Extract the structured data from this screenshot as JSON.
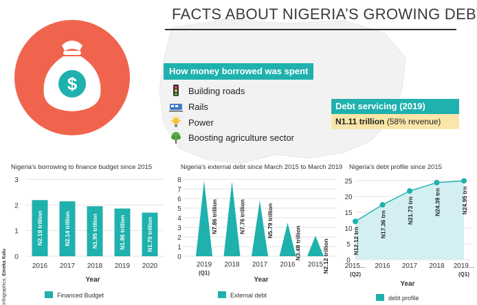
{
  "header": {
    "title": "FACTS ABOUT NIGERIA’S GROWING DEBTS"
  },
  "spending": {
    "heading": "How money borrowed was spent",
    "items": [
      {
        "label": "Building roads",
        "icon": "traffic-light-icon"
      },
      {
        "label": "Rails",
        "icon": "train-icon"
      },
      {
        "label": "Power",
        "icon": "light-bulb-icon"
      },
      {
        "label": "Boosting agriculture sector",
        "icon": "tree-icon"
      }
    ]
  },
  "debt_servicing": {
    "heading": "Debt servicing (2019)",
    "amount": "N1.11 trillion",
    "note": "(58% revenue)"
  },
  "credit": {
    "label": "Infographics:",
    "name": "Emeka Kalu"
  },
  "colors": {
    "teal": "#1fb1ad",
    "coral": "#f0644e",
    "yellow_box": "#fbe6a9",
    "area_fill": "#d3eff2"
  },
  "chart_data": [
    {
      "type": "bar",
      "title": "Nigeria's borrowing to finance budget since 2015",
      "categories": [
        "2016",
        "2017",
        "2018",
        "2019",
        "2020"
      ],
      "series": [
        {
          "name": "Financed Budget",
          "values": [
            2.19,
            2.14,
            1.95,
            1.86,
            1.7
          ]
        }
      ],
      "data_labels": [
        "N2.19 trillion",
        "N2.14 trillion",
        "N1.95 trillion",
        "N1.86 trillion",
        "N1.70 trillion"
      ],
      "xlabel": "Year",
      "ylim": [
        0,
        3
      ],
      "yticks": [
        0,
        1,
        2,
        3
      ],
      "grid": true,
      "legend": "bottom"
    },
    {
      "type": "bar",
      "title": "Nigeria's external debt since March 2015 to March 2019",
      "categories": [
        "2019",
        "2018",
        "2017",
        "2016",
        "2015"
      ],
      "category_sublabels": [
        "(Q1)",
        "",
        "",
        "",
        ""
      ],
      "series": [
        {
          "name": "External debt",
          "values": [
            7.86,
            7.76,
            5.79,
            3.48,
            2.12
          ]
        }
      ],
      "data_labels": [
        "N7.86 trillion",
        "N7.76 trillion",
        "N5.79 trillion",
        "N3.48 trillion",
        "N2.12 trillion"
      ],
      "xlabel": "Year",
      "ylim": [
        0,
        8
      ],
      "yticks": [
        0,
        1,
        2,
        3,
        4,
        5,
        6,
        7,
        8
      ],
      "grid": true,
      "legend": "bottom"
    },
    {
      "type": "area",
      "title": "Nigeria's debt profile since 2015",
      "categories": [
        "2015...",
        "2016",
        "2017",
        "2018",
        "2019..."
      ],
      "category_sublabels": [
        "(Q2)",
        "",
        "",
        "",
        "(Q1)"
      ],
      "series": [
        {
          "name": "debt profile",
          "values": [
            12.12,
            17.36,
            21.73,
            24.39,
            24.95
          ]
        }
      ],
      "data_labels": [
        "N12.12 trn",
        "N17.36 trn",
        "N21.73 trn",
        "N24.39 trn",
        "N24.95 trn"
      ],
      "xlabel": "Year",
      "ylim": [
        0,
        25
      ],
      "yticks": [
        0,
        5,
        10,
        15,
        20,
        25
      ],
      "grid": true,
      "legend": "bottom"
    }
  ]
}
